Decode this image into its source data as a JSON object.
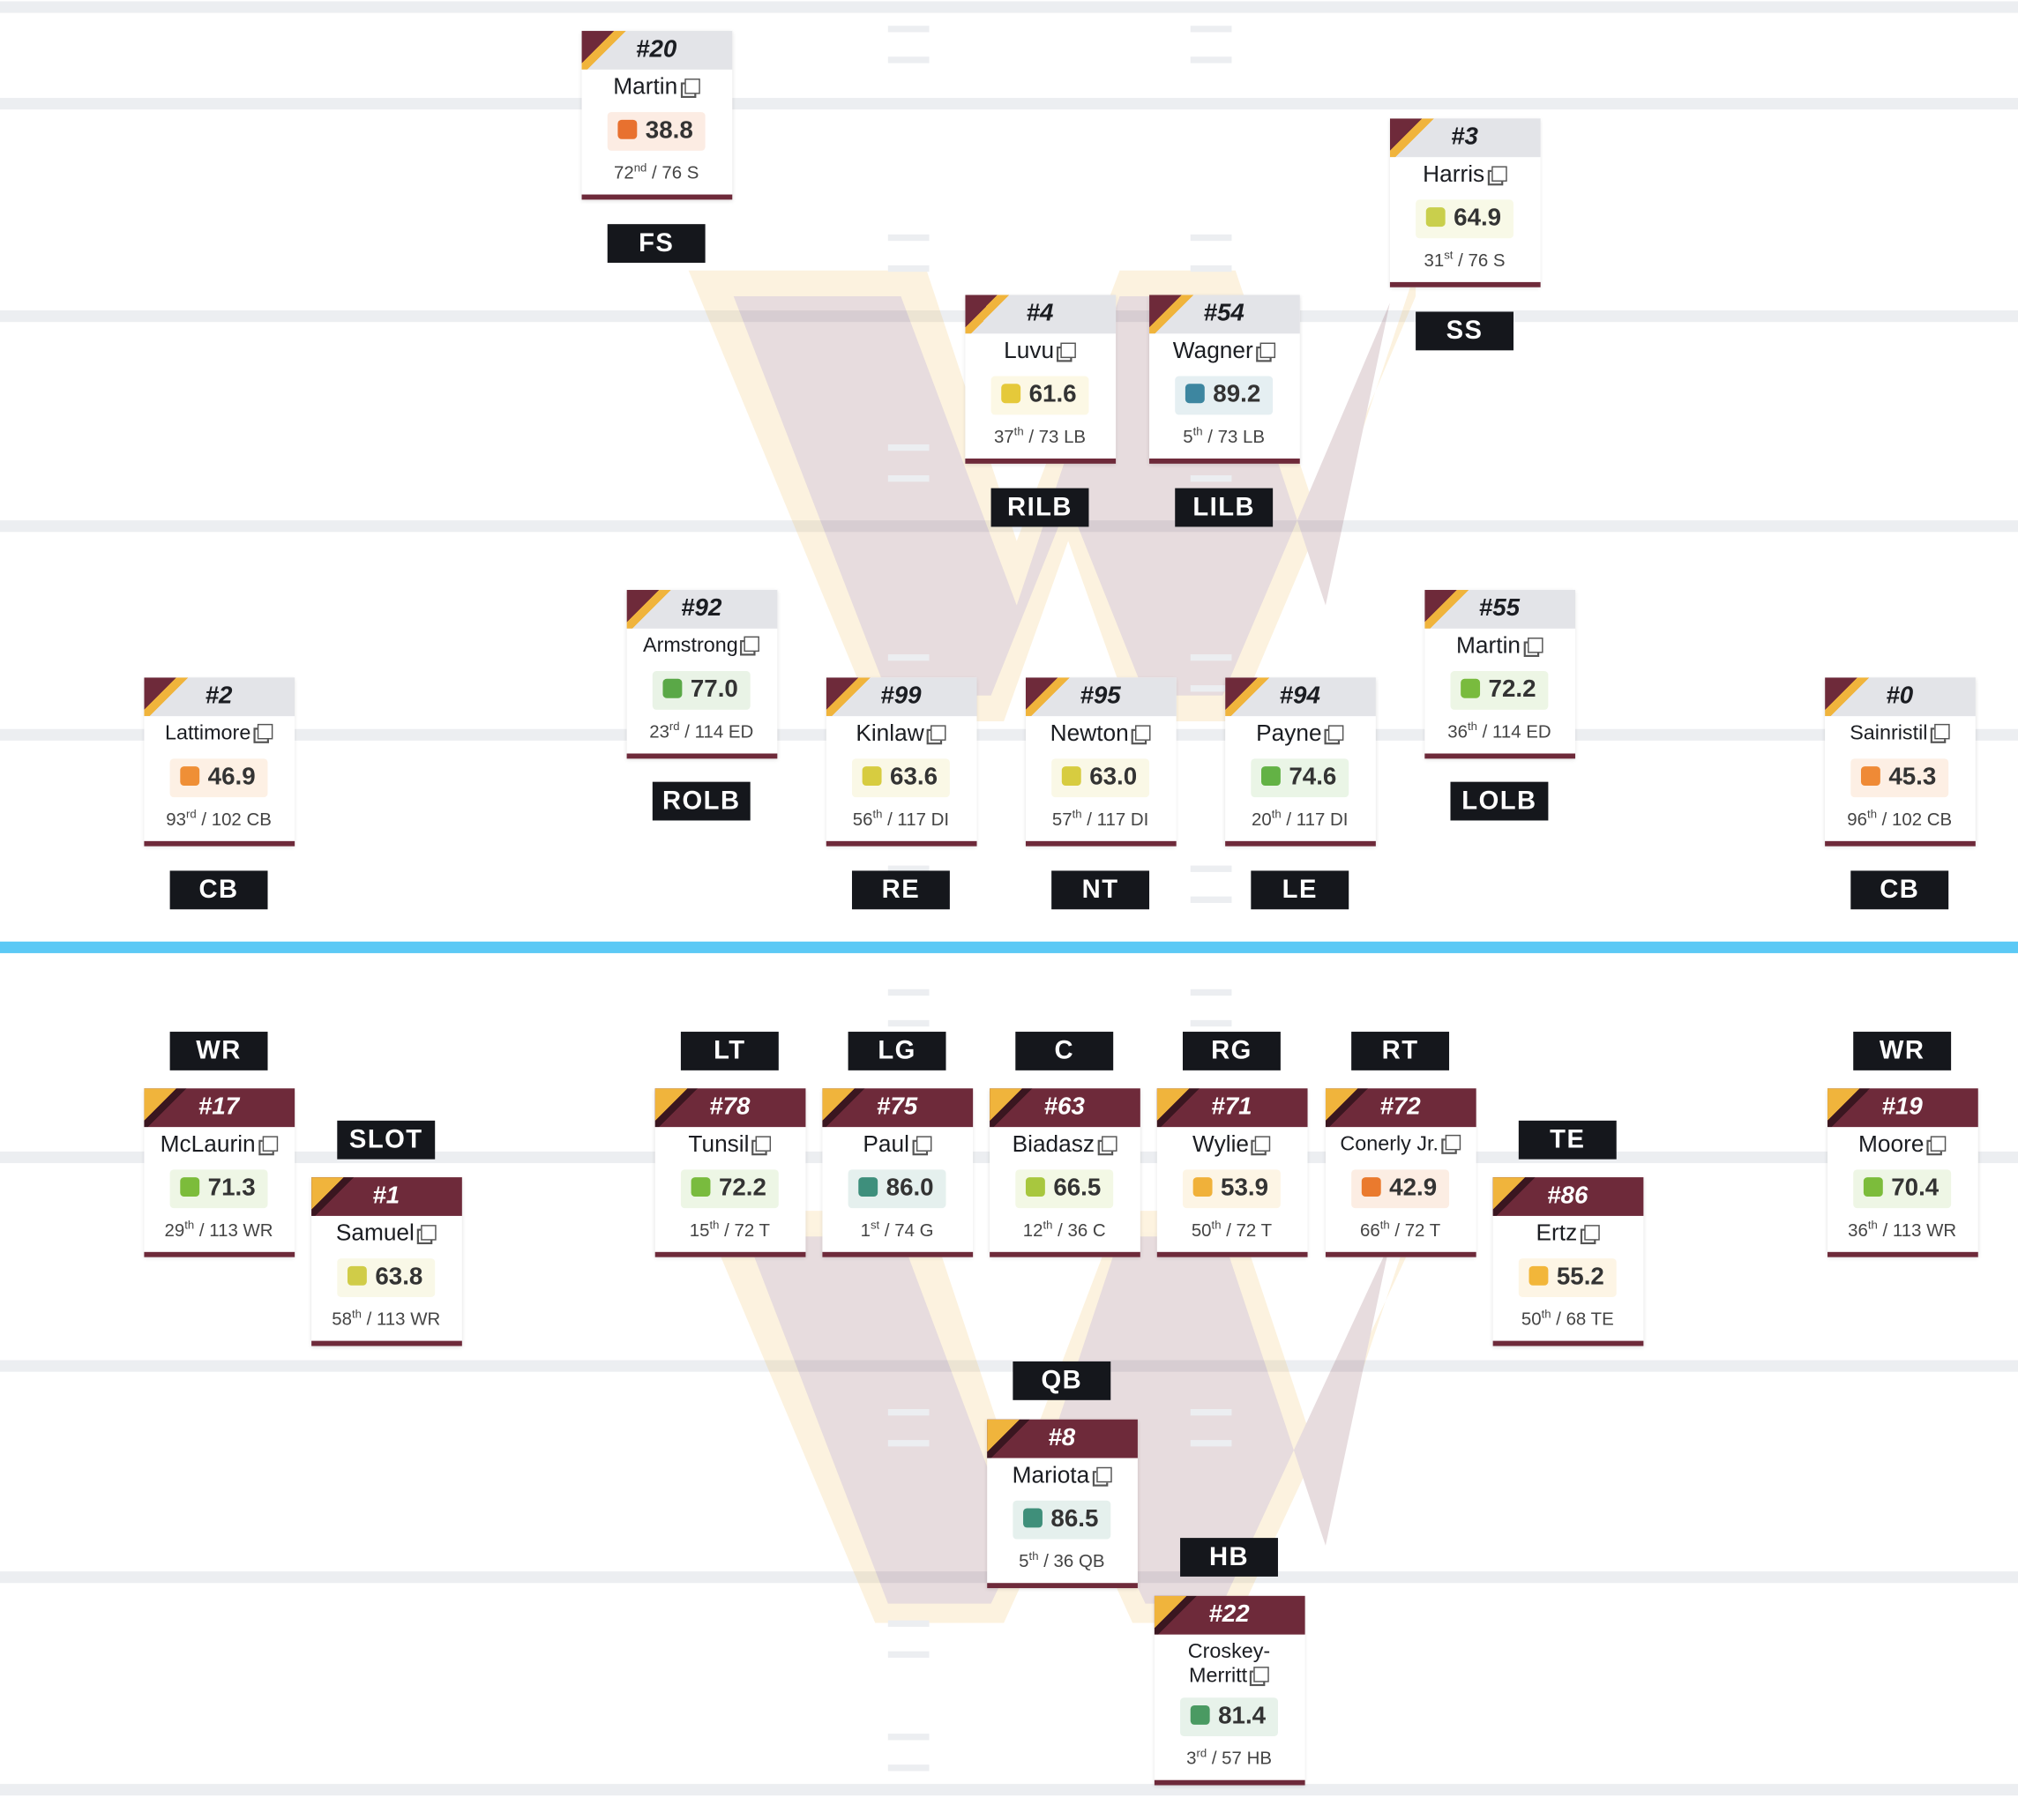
{
  "players": [
    {
      "number": "#20",
      "name": "Martin",
      "grade": "38.8",
      "color": "#e8712f",
      "rank": "72",
      "suffix": "nd",
      "pool": "/ 76 S",
      "position": "FS"
    },
    {
      "number": "#3",
      "name": "Harris",
      "grade": "64.9",
      "color": "#c9cf4c",
      "rank": "31",
      "suffix": "st",
      "pool": "/ 76 S",
      "position": "SS"
    },
    {
      "number": "#4",
      "name": "Luvu",
      "grade": "61.6",
      "color": "#e5c93a",
      "rank": "37",
      "suffix": "th",
      "pool": "/ 73 LB",
      "position": "RILB"
    },
    {
      "number": "#54",
      "name": "Wagner",
      "grade": "89.2",
      "color": "#3d86a0",
      "rank": "5",
      "suffix": "th",
      "pool": "/ 73 LB",
      "position": "LILB"
    },
    {
      "number": "#92",
      "name": "Armstrong",
      "grade": "77.0",
      "color": "#5aa847",
      "rank": "23",
      "suffix": "rd",
      "pool": "/ 114 ED",
      "position": "ROLB"
    },
    {
      "number": "#55",
      "name": "Martin",
      "grade": "72.2",
      "color": "#79bb3e",
      "rank": "36",
      "suffix": "th",
      "pool": "/ 114 ED",
      "position": "LOLB"
    },
    {
      "number": "#2",
      "name": "Lattimore",
      "grade": "46.9",
      "color": "#ef8f36",
      "rank": "93",
      "suffix": "rd",
      "pool": "/ 102 CB",
      "position": "CB"
    },
    {
      "number": "#99",
      "name": "Kinlaw",
      "grade": "63.6",
      "color": "#d7cc40",
      "rank": "56",
      "suffix": "th",
      "pool": "/ 117 DI",
      "position": "RE"
    },
    {
      "number": "#95",
      "name": "Newton",
      "grade": "63.0",
      "color": "#d7cc40",
      "rank": "57",
      "suffix": "th",
      "pool": "/ 117 DI",
      "position": "NT"
    },
    {
      "number": "#94",
      "name": "Payne",
      "grade": "74.6",
      "color": "#63b245",
      "rank": "20",
      "suffix": "th",
      "pool": "/ 117 DI",
      "position": "LE"
    },
    {
      "number": "#0",
      "name": "Sainristil",
      "grade": "45.3",
      "color": "#ef8a36",
      "rank": "96",
      "suffix": "th",
      "pool": "/ 102 CB",
      "position": "CB"
    },
    {
      "number": "#17",
      "name": "McLaurin",
      "grade": "71.3",
      "color": "#7cbc3b",
      "rank": "29",
      "suffix": "th",
      "pool": "/ 113 WR",
      "position": "WR"
    },
    {
      "number": "#1",
      "name": "Samuel",
      "grade": "63.8",
      "color": "#d0cc48",
      "rank": "58",
      "suffix": "th",
      "pool": "/ 113 WR",
      "position": "SLOT"
    },
    {
      "number": "#78",
      "name": "Tunsil",
      "grade": "72.2",
      "color": "#79bb3e",
      "rank": "15",
      "suffix": "th",
      "pool": "/ 72 T",
      "position": "LT"
    },
    {
      "number": "#75",
      "name": "Paul",
      "grade": "86.0",
      "color": "#3e8f7c",
      "rank": "1",
      "suffix": "st",
      "pool": "/ 74 G",
      "position": "LG"
    },
    {
      "number": "#63",
      "name": "Biadasz",
      "grade": "66.5",
      "color": "#a8c73e",
      "rank": "12",
      "suffix": "th",
      "pool": "/ 36 C",
      "position": "C"
    },
    {
      "number": "#71",
      "name": "Wylie",
      "grade": "53.9",
      "color": "#f0b13a",
      "rank": "50",
      "suffix": "th",
      "pool": "/ 72 T",
      "position": "RG"
    },
    {
      "number": "#72",
      "name": "Conerly Jr.",
      "grade": "42.9",
      "color": "#ea7a2e",
      "rank": "66",
      "suffix": "th",
      "pool": "/ 72 T",
      "position": "RT"
    },
    {
      "number": "#86",
      "name": "Ertz",
      "grade": "55.2",
      "color": "#f2b63a",
      "rank": "50",
      "suffix": "th",
      "pool": "/ 68 TE",
      "position": "TE"
    },
    {
      "number": "#19",
      "name": "Moore",
      "grade": "70.4",
      "color": "#7cbc3b",
      "rank": "36",
      "suffix": "th",
      "pool": "/ 113 WR",
      "position": "WR"
    },
    {
      "number": "#8",
      "name": "Mariota",
      "grade": "86.5",
      "color": "#3f8f7a",
      "rank": "5",
      "suffix": "th",
      "pool": "/ 36 QB",
      "position": "QB"
    },
    {
      "number": "#22",
      "name": "Croskey-Merritt",
      "grade": "81.4",
      "color": "#4a9a62",
      "rank": "3",
      "suffix": "rd",
      "pool": "/ 57 HB",
      "position": "HB"
    }
  ]
}
